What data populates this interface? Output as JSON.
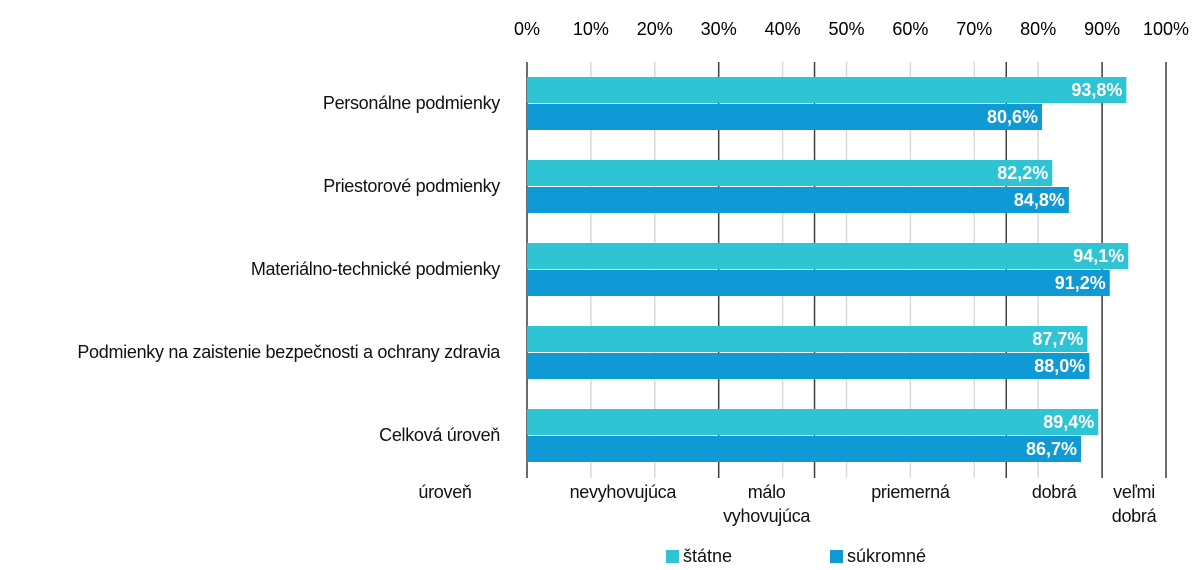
{
  "chart_data": {
    "type": "bar",
    "orientation": "horizontal",
    "categories": [
      "Personálne podmienky",
      "Priestorové podmienky",
      "Materiálno-technické podmienky",
      "Podmienky na zaistenie bezpečnosti a ochrany zdravia",
      "Celková úroveň"
    ],
    "series": [
      {
        "name": "štátne",
        "color": "#2ec4d3",
        "values": [
          93.8,
          82.2,
          94.1,
          87.7,
          89.4
        ],
        "value_labels": [
          "93,8%",
          "82,2%",
          "94,1%",
          "87,7%",
          "89,4%"
        ]
      },
      {
        "name": "súkromné",
        "color": "#0f9ad5",
        "values": [
          80.6,
          84.8,
          91.2,
          88.0,
          86.7
        ],
        "value_labels": [
          "80,6%",
          "84,8%",
          "91,2%",
          "88,0%",
          "86,7%"
        ]
      }
    ],
    "xlim": [
      0,
      100
    ],
    "xticks": [
      {
        "value": 0,
        "label": "0%"
      },
      {
        "value": 10,
        "label": "10%"
      },
      {
        "value": 20,
        "label": "20%"
      },
      {
        "value": 30,
        "label": "30%"
      },
      {
        "value": 40,
        "label": "40%"
      },
      {
        "value": 50,
        "label": "50%"
      },
      {
        "value": 60,
        "label": "60%"
      },
      {
        "value": 70,
        "label": "70%"
      },
      {
        "value": 80,
        "label": "80%"
      },
      {
        "value": 90,
        "label": "90%"
      },
      {
        "value": 100,
        "label": "100%"
      }
    ],
    "grid": true,
    "levels": {
      "title": "úroveň",
      "boundaries": [
        0,
        30,
        45,
        75,
        90,
        100
      ],
      "labels": [
        "nevyhovujúca",
        "málo vyhovujúca",
        "priemerná",
        "dobrá",
        "veľmi dobrá"
      ]
    }
  }
}
